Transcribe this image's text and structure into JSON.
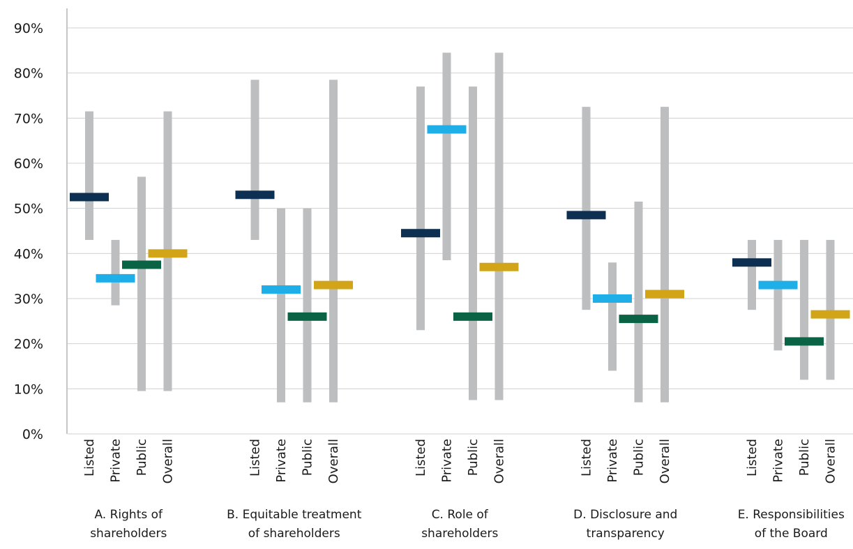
{
  "chart_data": {
    "type": "range-marker",
    "ylim": [
      0,
      90
    ],
    "y_ticks": [
      "0%",
      "10%",
      "20%",
      "30%",
      "40%",
      "50%",
      "60%",
      "70%",
      "80%",
      "90%"
    ],
    "y_tick_values": [
      0,
      10,
      20,
      30,
      40,
      50,
      60,
      70,
      80,
      90
    ],
    "grid": true,
    "range_color": "#bcbec0",
    "series_colors": {
      "Listed": "#0d2f52",
      "Private": "#1eaee8",
      "Public": "#0b6346",
      "Overall": "#d2a519"
    },
    "groups": [
      {
        "label_lines": [
          "A. Rights of",
          "shareholders"
        ],
        "items": [
          {
            "category": "Listed",
            "min": 43,
            "max": 71.5,
            "value": 52.5
          },
          {
            "category": "Private",
            "min": 28.5,
            "max": 43,
            "value": 34.5
          },
          {
            "category": "Public",
            "min": 9.5,
            "max": 57,
            "value": 37.5
          },
          {
            "category": "Overall",
            "min": 9.5,
            "max": 71.5,
            "value": 40
          }
        ]
      },
      {
        "label_lines": [
          "B. Equitable treatment",
          "of shareholders"
        ],
        "items": [
          {
            "category": "Listed",
            "min": 43,
            "max": 78.5,
            "value": 53
          },
          {
            "category": "Private",
            "min": 7,
            "max": 50,
            "value": 32
          },
          {
            "category": "Public",
            "min": 7,
            "max": 50,
            "value": 26
          },
          {
            "category": "Overall",
            "min": 7,
            "max": 78.5,
            "value": 33
          }
        ]
      },
      {
        "label_lines": [
          "C. Role of",
          "shareholders"
        ],
        "items": [
          {
            "category": "Listed",
            "min": 23,
            "max": 77,
            "value": 44.5
          },
          {
            "category": "Private",
            "min": 38.5,
            "max": 84.5,
            "value": 67.5
          },
          {
            "category": "Public",
            "min": 7.5,
            "max": 77,
            "value": 26
          },
          {
            "category": "Overall",
            "min": 7.5,
            "max": 84.5,
            "value": 37
          }
        ]
      },
      {
        "label_lines": [
          "D. Disclosure and",
          "transparency"
        ],
        "items": [
          {
            "category": "Listed",
            "min": 27.5,
            "max": 72.5,
            "value": 48.5
          },
          {
            "category": "Private",
            "min": 14,
            "max": 38,
            "value": 30
          },
          {
            "category": "Public",
            "min": 7,
            "max": 51.5,
            "value": 25.5
          },
          {
            "category": "Overall",
            "min": 7,
            "max": 72.5,
            "value": 31
          }
        ]
      },
      {
        "label_lines": [
          "E. Responsibilities",
          "of the Board"
        ],
        "items": [
          {
            "category": "Listed",
            "min": 27.5,
            "max": 43,
            "value": 38
          },
          {
            "category": "Private",
            "min": 18.5,
            "max": 43,
            "value": 33
          },
          {
            "category": "Public",
            "min": 12,
            "max": 43,
            "value": 20.5
          },
          {
            "category": "Overall",
            "min": 12,
            "max": 43,
            "value": 26.5
          }
        ]
      }
    ]
  }
}
